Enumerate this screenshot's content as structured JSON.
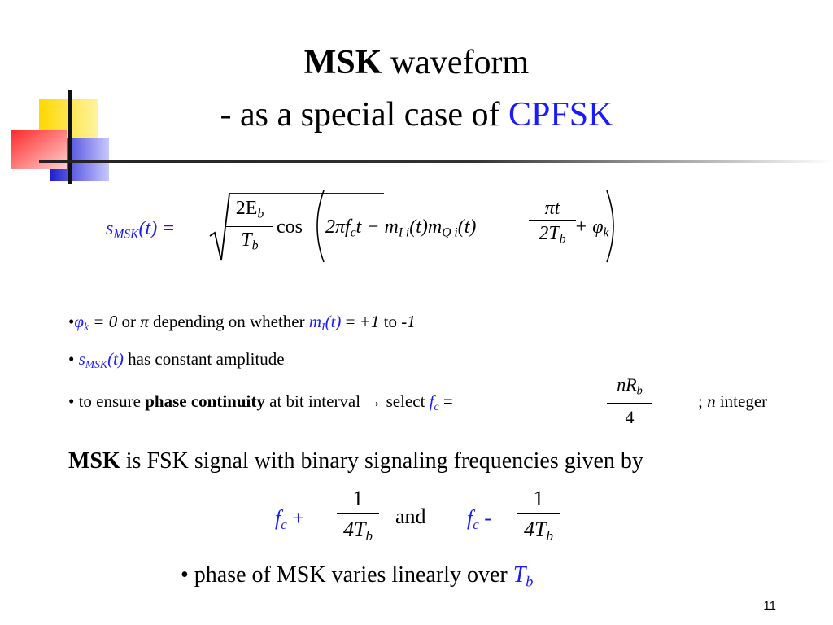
{
  "title": {
    "bold": "MSK",
    "rest": "waveform",
    "line2_prefix": "- as a special case of",
    "line2_highlight": "CPFSK"
  },
  "formula": {
    "lhs_s": "s",
    "lhs_sub": "MSK",
    "lhs_arg": "(t) =",
    "sqrt_num": "2E",
    "sqrt_num_sub": "b",
    "sqrt_den": "T",
    "sqrt_den_sub": "b",
    "cos": "cos",
    "term1": "2πf",
    "term1_sub": "c",
    "term1_end": "t − m",
    "m_i_sub": "I i",
    "m_i_arg": "(t)m",
    "m_q_sub": "Q i",
    "m_q_arg": "(t)",
    "frac_num": "πt",
    "frac_den": "2T",
    "frac_den_sub": "b",
    "phi": "+ φ",
    "phi_sub": "k"
  },
  "bullets": {
    "b1": {
      "phi": "φ",
      "phi_sub": "k",
      "eq": "= 0",
      "or": "or",
      "pi": "π",
      "depending": "depending on whether",
      "m": "m",
      "m_sub": "I",
      "m_arg": "(t)",
      "eq2": "=",
      "plus1": "+1",
      "to": "to",
      "minus1": "-1"
    },
    "b2": {
      "s": "s",
      "s_sub": "MSK",
      "s_arg": "(t)",
      "rest": "has constant amplitude"
    },
    "b3": {
      "prefix": "• to ensure",
      "bold": "phase continuity",
      "mid": "at bit interval",
      "arrow": "→",
      "select": "select",
      "f": "f",
      "f_sub": "c",
      "eq": "=",
      "frac_num": "nR",
      "frac_num_sub": "b",
      "frac_den": "4",
      "suffix_semi": ";",
      "n": "n",
      "integer": "integer"
    }
  },
  "statement": {
    "bold": "MSK",
    "rest": "is FSK signal with binary signaling frequencies given by"
  },
  "frequencies": {
    "f1": "f",
    "f1_sub": "c",
    "f1_op": "+",
    "frac1_num": "1",
    "frac1_den": "4T",
    "frac1_den_sub": "b",
    "and": "and",
    "f2": "f",
    "f2_sub": "c",
    "f2_op": "-",
    "frac2_num": "1",
    "frac2_den": "4T",
    "frac2_den_sub": "b"
  },
  "phase_line": {
    "text": "• phase of MSK varies linearly over",
    "T": "T",
    "T_sub": "b"
  },
  "page_number": "11",
  "colors": {
    "accent_blue": "#1a1aff",
    "deco_yellow": "#ffd700",
    "deco_red": "#ff3b3b",
    "deco_blue": "#2b2bd6"
  }
}
